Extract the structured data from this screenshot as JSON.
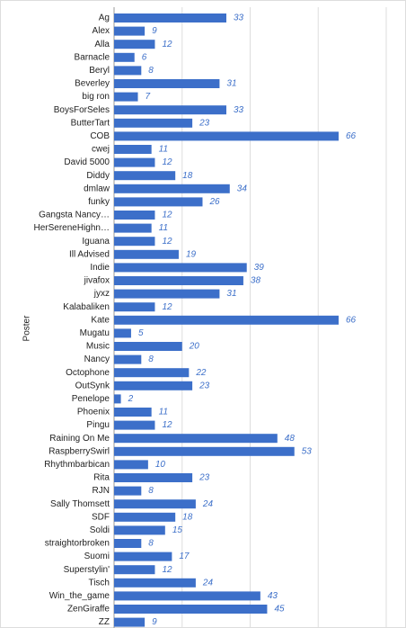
{
  "chart_data": {
    "type": "bar",
    "orientation": "horizontal",
    "y_label": "Poster",
    "color": "#3c6fc9",
    "categories": [
      "Ag",
      "Alex",
      "Alla",
      "Barnacle",
      "Beryl",
      "Beverley",
      "big ron",
      "BoysForSeles",
      "ButterTart",
      "COB",
      "cwej",
      "David 5000",
      "Diddy",
      "dmlaw",
      "funky",
      "Gangsta Nancy…",
      "HerSereneHighn…",
      "Iguana",
      "Ill Advised",
      "Indie",
      "jivafox",
      "jyxz",
      "Kalabaliken",
      "Kate",
      "Mugatu",
      "Music",
      "Nancy",
      "Octophone",
      "OutSynk",
      "Penelope",
      "Phoenix",
      "Pingu",
      "Raining On Me",
      "RaspberrySwirl",
      "Rhythmbarbican",
      "Rita",
      "RJN",
      "Sally Thomsett",
      "SDF",
      "Soldi",
      "straightorbroken",
      "Suomi",
      "Superstylin'",
      "Tisch",
      "Win_the_game",
      "ZenGiraffe",
      "ZZ"
    ],
    "values": [
      33,
      9,
      12,
      6,
      8,
      31,
      7,
      33,
      23,
      66,
      11,
      12,
      18,
      34,
      26,
      12,
      11,
      12,
      19,
      39,
      38,
      31,
      12,
      66,
      5,
      20,
      8,
      22,
      23,
      2,
      11,
      12,
      48,
      53,
      10,
      23,
      8,
      24,
      18,
      15,
      8,
      17,
      12,
      24,
      43,
      45,
      9
    ],
    "xlim": [
      0,
      80
    ],
    "xticks": [
      0,
      20,
      40,
      60,
      80
    ],
    "grid": true,
    "data_labels": true
  }
}
